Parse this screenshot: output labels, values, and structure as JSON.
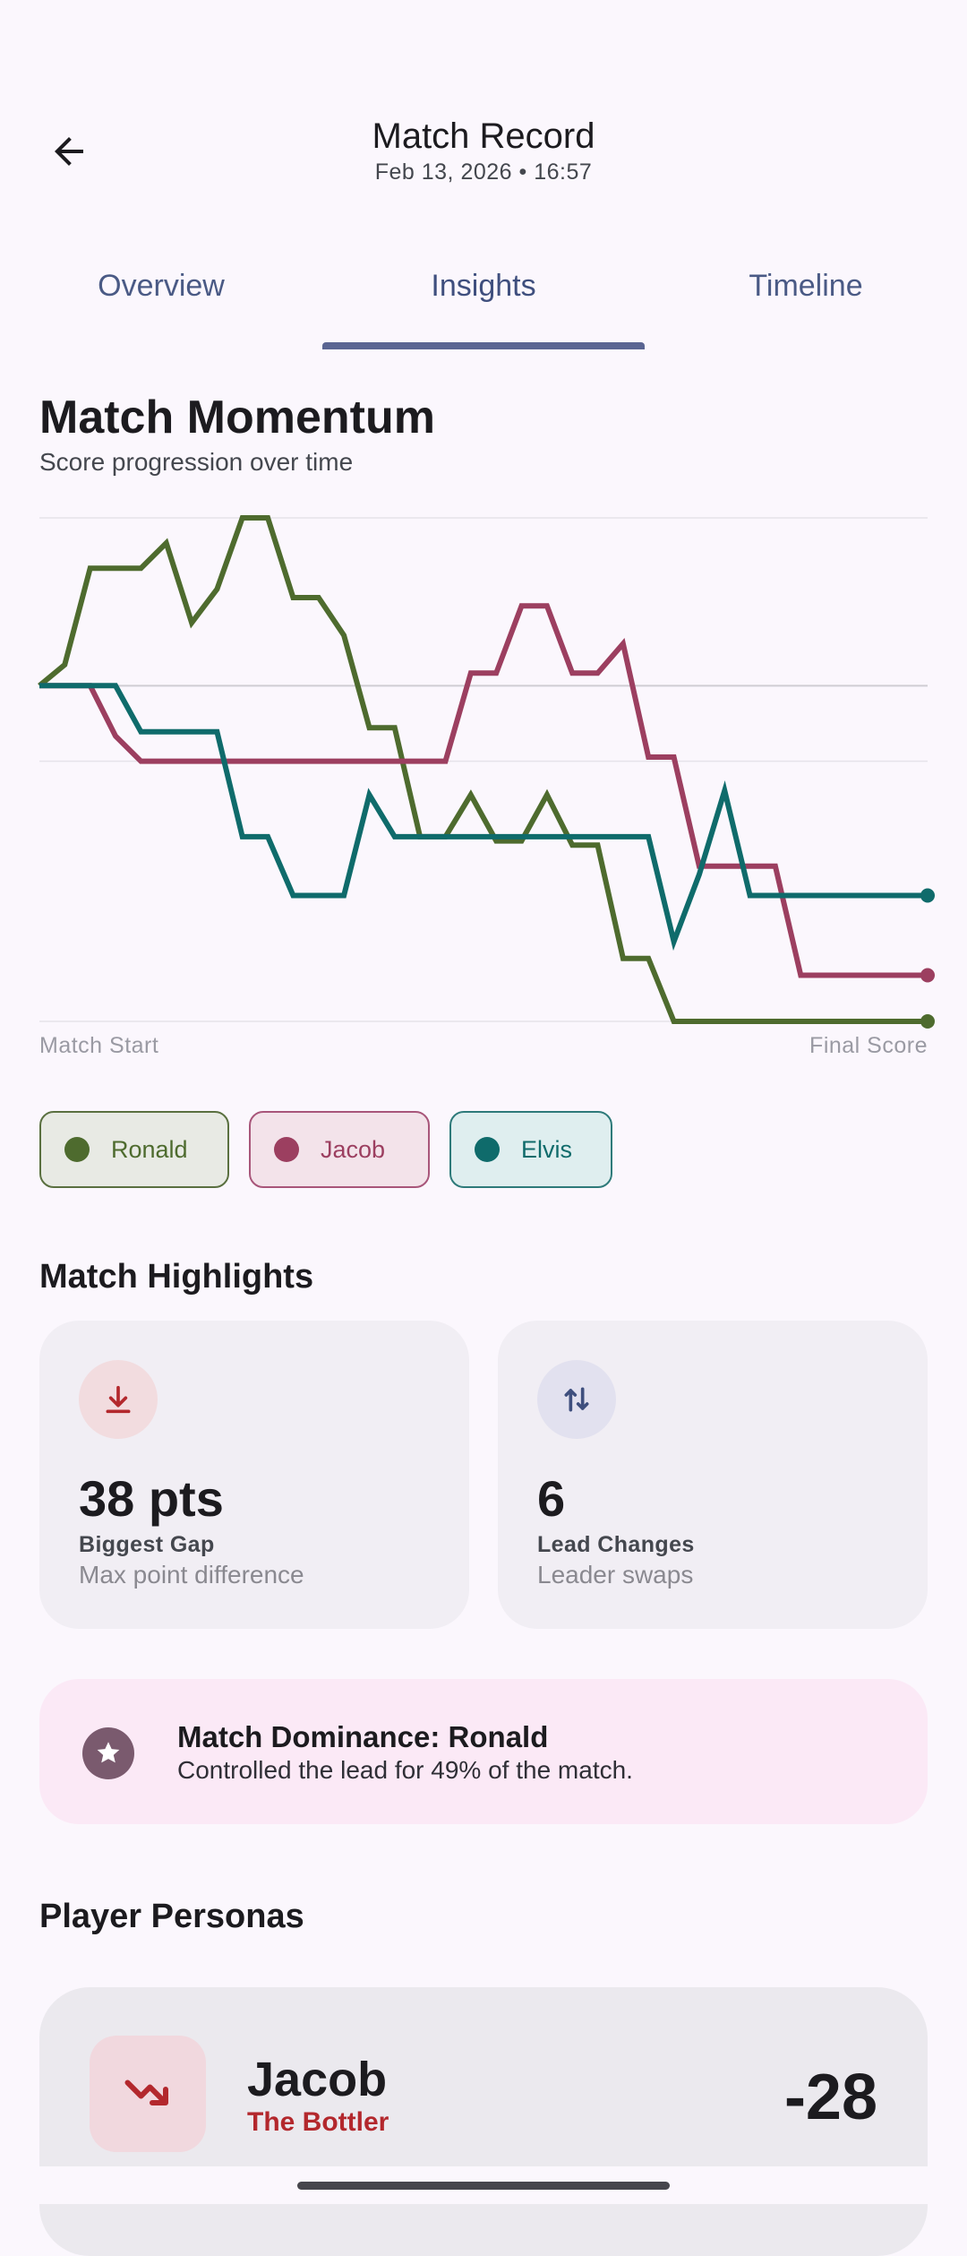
{
  "header": {
    "title": "Match Record",
    "subtitle": "Feb 13, 2026 • 16:57"
  },
  "tabs": [
    {
      "label": "Overview",
      "active": false
    },
    {
      "label": "Insights",
      "active": true
    },
    {
      "label": "Timeline",
      "active": false
    }
  ],
  "momentum": {
    "title": "Match Momentum",
    "subtitle": "Score progression over time",
    "start_label": "Match Start",
    "end_label": "Final Score"
  },
  "chart_data": {
    "type": "line",
    "x": [
      0,
      1,
      2,
      3,
      4,
      5,
      6,
      7,
      8,
      9,
      10,
      11,
      12,
      13,
      14,
      15,
      16,
      17,
      18,
      19,
      20,
      21,
      22,
      23,
      24,
      25,
      26,
      27,
      28,
      29,
      30,
      31,
      32,
      33,
      34,
      35
    ],
    "xlabel": "",
    "ylabel": "",
    "ylim": [
      -8,
      4
    ],
    "grid": true,
    "series": [
      {
        "name": "Ronald",
        "color": "#4e6b2e",
        "values": [
          0,
          0.5,
          2.8,
          2.8,
          2.8,
          3.4,
          1.5,
          2.3,
          4.0,
          4.0,
          2.1,
          2.1,
          1.2,
          -1.0,
          -1.0,
          -3.6,
          -3.6,
          -2.6,
          -3.7,
          -3.7,
          -2.6,
          -3.8,
          -3.8,
          -6.5,
          -6.5,
          -8,
          -8,
          -8,
          -8,
          -8,
          -8,
          -8,
          -8,
          -8,
          -8,
          -8
        ]
      },
      {
        "name": "Jacob",
        "color": "#9c3f60",
        "values": [
          0,
          0,
          0,
          -1.2,
          -1.8,
          -1.8,
          -1.8,
          -1.8,
          -1.8,
          -1.8,
          -1.8,
          -1.8,
          -1.8,
          -1.8,
          -1.8,
          -1.8,
          -1.8,
          0.3,
          0.3,
          1.9,
          1.9,
          0.3,
          0.3,
          1.0,
          -1.7,
          -1.7,
          -4.3,
          -4.3,
          -4.3,
          -4.3,
          -6.9,
          -6.9,
          -6.9,
          -6.9,
          -6.9,
          -6.9
        ]
      },
      {
        "name": "Elvis",
        "color": "#0f6b6b",
        "values": [
          0,
          0,
          0,
          0,
          -1.1,
          -1.1,
          -1.1,
          -1.1,
          -3.6,
          -3.6,
          -5.0,
          -5.0,
          -5.0,
          -2.6,
          -3.6,
          -3.6,
          -3.6,
          -3.6,
          -3.6,
          -3.6,
          -3.6,
          -3.6,
          -3.6,
          -3.6,
          -3.6,
          -6.1,
          -4.5,
          -2.5,
          -5.0,
          -5.0,
          -5.0,
          -5.0,
          -5.0,
          -5.0,
          -5.0,
          -5.0
        ]
      }
    ]
  },
  "legend": [
    {
      "name": "Ronald",
      "color": "#4e6b2e"
    },
    {
      "name": "Jacob",
      "color": "#9c3f60"
    },
    {
      "name": "Elvis",
      "color": "#0f6b6b"
    }
  ],
  "highlights": {
    "title": "Match Highlights",
    "gap": {
      "value": "38 pts",
      "label": "Biggest Gap",
      "sub": "Max point difference",
      "icon": "arrow-down-to-line-icon"
    },
    "lead": {
      "value": "6",
      "label": "Lead Changes",
      "sub": "Leader swaps",
      "icon": "swap-vertical-icon"
    }
  },
  "dominance": {
    "title": "Match Dominance: Ronald",
    "sub": "Controlled the lead for 49% of the match.",
    "icon": "star-icon"
  },
  "personas": {
    "title": "Player Personas",
    "items": [
      {
        "name": "Jacob",
        "tag": "The Bottler",
        "score": "-28",
        "icon": "trending-down-icon"
      }
    ]
  }
}
